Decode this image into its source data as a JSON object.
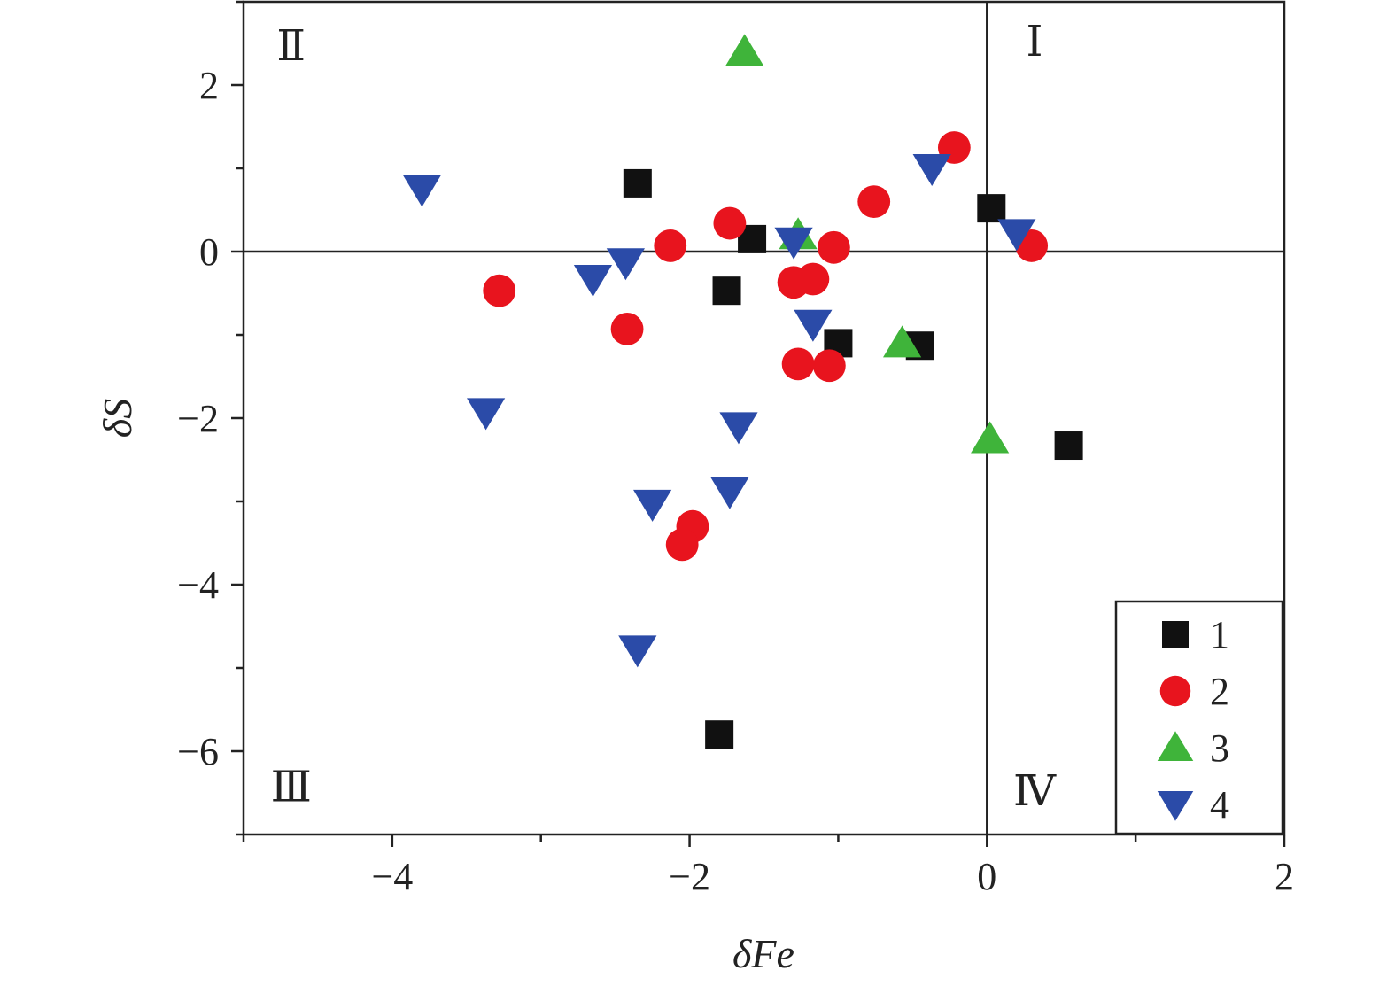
{
  "chart_data": {
    "type": "scatter",
    "xlabel": "δFe",
    "ylabel": "δS",
    "xlim": [
      -5,
      2
    ],
    "ylim": [
      -7,
      3
    ],
    "x_ticks": [
      -4,
      -2,
      0,
      2
    ],
    "x_tick_labels": [
      "−4",
      "−2",
      "0",
      "2"
    ],
    "y_ticks": [
      2,
      0,
      -2,
      -4,
      -6
    ],
    "y_tick_labels": [
      "2",
      "0",
      "−2",
      "−4",
      "−6"
    ],
    "reference_lines": {
      "x": 0,
      "y": 0
    },
    "quadrant_labels": [
      {
        "text": "Ⅰ",
        "position": "top-right"
      },
      {
        "text": "Ⅱ",
        "position": "top-left"
      },
      {
        "text": "Ⅲ",
        "position": "bottom-left"
      },
      {
        "text": "Ⅳ",
        "position": "bottom-right"
      }
    ],
    "grid": false,
    "legend_position": "bottom-right",
    "series": [
      {
        "name": "1",
        "marker": "square",
        "color": "#111111",
        "points": [
          [
            -2.35,
            0.82
          ],
          [
            -1.75,
            -0.47
          ],
          [
            -1.58,
            0.15
          ],
          [
            -1.0,
            -1.1
          ],
          [
            -0.45,
            -1.13
          ],
          [
            0.03,
            0.52
          ],
          [
            0.55,
            -2.33
          ],
          [
            -1.8,
            -5.8
          ]
        ]
      },
      {
        "name": "2",
        "marker": "circle",
        "color": "#e8141e",
        "points": [
          [
            -3.28,
            -0.47
          ],
          [
            -2.42,
            -0.93
          ],
          [
            -2.13,
            0.07
          ],
          [
            -1.73,
            0.34
          ],
          [
            -1.3,
            -0.37
          ],
          [
            -1.17,
            -0.33
          ],
          [
            -1.03,
            0.05
          ],
          [
            -0.76,
            0.6
          ],
          [
            -0.22,
            1.25
          ],
          [
            0.3,
            0.07
          ],
          [
            -1.27,
            -1.35
          ],
          [
            -1.06,
            -1.37
          ],
          [
            -1.98,
            -3.3
          ],
          [
            -2.05,
            -3.52
          ]
        ]
      },
      {
        "name": "3",
        "marker": "triangle-up",
        "color": "#3fb43a",
        "points": [
          [
            -1.63,
            2.4
          ],
          [
            -1.27,
            0.2
          ],
          [
            -0.57,
            -1.1
          ],
          [
            0.02,
            -2.25
          ]
        ]
      },
      {
        "name": "4",
        "marker": "triangle-down",
        "color": "#2b4ba8",
        "points": [
          [
            -3.8,
            0.75
          ],
          [
            -3.37,
            -1.93
          ],
          [
            -2.65,
            -0.33
          ],
          [
            -2.43,
            -0.13
          ],
          [
            -2.25,
            -3.03
          ],
          [
            -2.35,
            -4.78
          ],
          [
            -1.73,
            -2.88
          ],
          [
            -1.67,
            -2.1
          ],
          [
            -1.3,
            0.12
          ],
          [
            -1.17,
            -0.87
          ],
          [
            -0.37,
            1.0
          ],
          [
            0.2,
            0.22
          ]
        ]
      }
    ]
  }
}
